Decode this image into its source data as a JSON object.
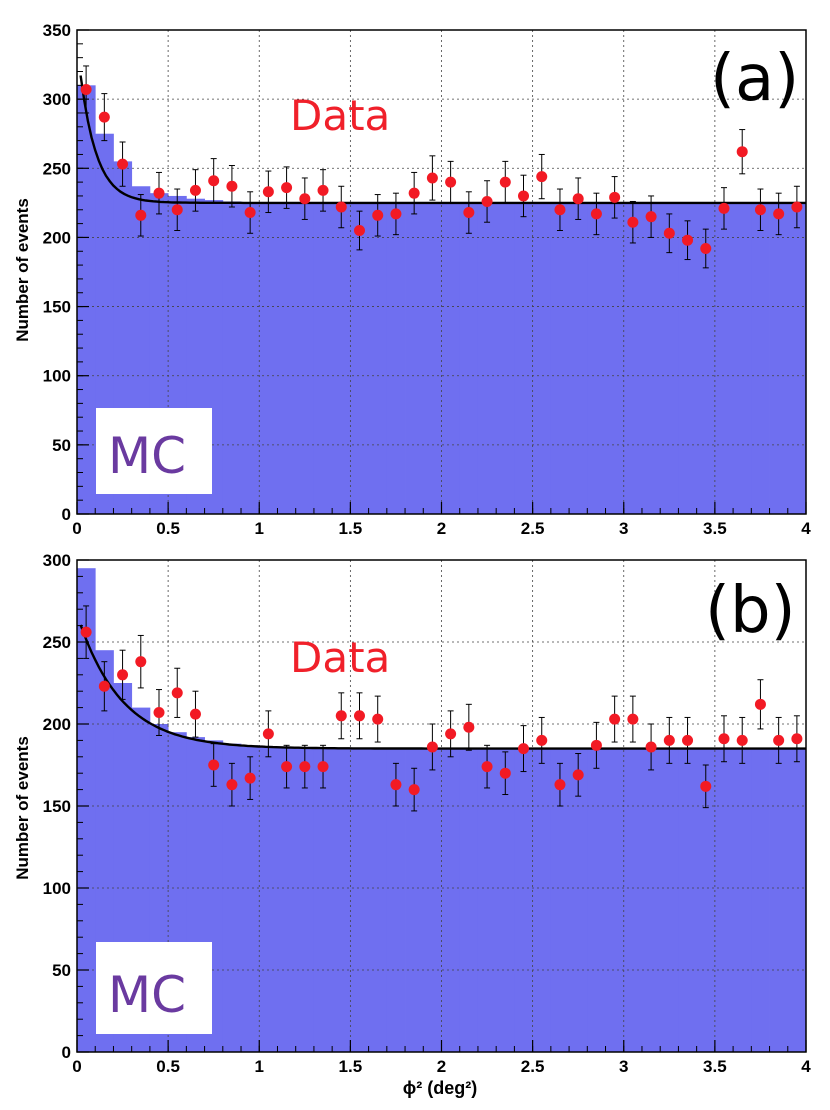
{
  "chart_data": [
    {
      "type": "bar",
      "panel_label": "(a)",
      "ylabel": "Number of events",
      "xlabel": "",
      "xlim": [
        0,
        4
      ],
      "ylim": [
        0,
        350
      ],
      "x_ticks": [
        "0",
        "0.5",
        "1",
        "1.5",
        "2",
        "2.5",
        "3",
        "3.5",
        "4"
      ],
      "y_ticks": [
        "0",
        "50",
        "100",
        "150",
        "200",
        "250",
        "300",
        "350"
      ],
      "grid": true,
      "data_text": "Data",
      "mc_text": "MC",
      "bin_width": 0.1,
      "mc_histogram": [
        310,
        275,
        255,
        237,
        232,
        230,
        228,
        227,
        226,
        225,
        225,
        225,
        225,
        225,
        225,
        225,
        225,
        225,
        225,
        225,
        225,
        225,
        225,
        225,
        225,
        225,
        225,
        225,
        225,
        225,
        225,
        225,
        225,
        225,
        225,
        225,
        225,
        225,
        225,
        225
      ],
      "data_points": {
        "x": [
          0.05,
          0.15,
          0.25,
          0.35,
          0.45,
          0.55,
          0.65,
          0.75,
          0.85,
          0.95,
          1.05,
          1.15,
          1.25,
          1.35,
          1.45,
          1.55,
          1.65,
          1.75,
          1.85,
          1.95,
          2.05,
          2.15,
          2.25,
          2.35,
          2.45,
          2.55,
          2.65,
          2.75,
          2.85,
          2.95,
          3.05,
          3.15,
          3.25,
          3.35,
          3.45,
          3.55,
          3.65,
          3.75,
          3.85,
          3.95
        ],
        "y": [
          307,
          287,
          253,
          216,
          232,
          220,
          234,
          241,
          237,
          218,
          233,
          236,
          228,
          234,
          222,
          205,
          216,
          217,
          232,
          243,
          240,
          218,
          226,
          240,
          230,
          244,
          220,
          228,
          217,
          229,
          211,
          215,
          203,
          198,
          192,
          221,
          262,
          220,
          217,
          222
        ],
        "yerr": [
          17,
          17,
          16,
          15,
          15,
          15,
          15,
          16,
          15,
          15,
          15,
          15,
          15,
          15,
          15,
          14,
          15,
          15,
          15,
          16,
          15,
          15,
          15,
          15,
          15,
          16,
          15,
          15,
          15,
          15,
          15,
          15,
          14,
          14,
          14,
          15,
          16,
          15,
          15,
          15
        ]
      },
      "fit_curve": {
        "baseline": 225,
        "amplitude": 115,
        "decay": 0.09
      }
    },
    {
      "type": "bar",
      "panel_label": "(b)",
      "ylabel": "Number of events",
      "xlabel": "ϕ² (deg²)",
      "xlim": [
        0,
        4
      ],
      "ylim": [
        0,
        300
      ],
      "x_ticks": [
        "0",
        "0.5",
        "1",
        "1.5",
        "2",
        "2.5",
        "3",
        "3.5",
        "4"
      ],
      "y_ticks": [
        "0",
        "50",
        "100",
        "150",
        "200",
        "250",
        "300"
      ],
      "grid": true,
      "data_text": "Data",
      "mc_text": "MC",
      "bin_width": 0.1,
      "mc_histogram": [
        295,
        245,
        225,
        210,
        200,
        195,
        192,
        190,
        188,
        187,
        186,
        186,
        185,
        185,
        185,
        185,
        185,
        185,
        185,
        185,
        185,
        185,
        185,
        185,
        185,
        185,
        185,
        185,
        185,
        185,
        185,
        185,
        185,
        185,
        185,
        185,
        185,
        185,
        185,
        185
      ],
      "data_points": {
        "x": [
          0.05,
          0.15,
          0.25,
          0.35,
          0.45,
          0.55,
          0.65,
          0.75,
          0.85,
          0.95,
          1.05,
          1.15,
          1.25,
          1.35,
          1.45,
          1.55,
          1.65,
          1.75,
          1.85,
          1.95,
          2.05,
          2.15,
          2.25,
          2.35,
          2.45,
          2.55,
          2.65,
          2.75,
          2.85,
          2.95,
          3.05,
          3.15,
          3.25,
          3.35,
          3.45,
          3.55,
          3.65,
          3.75,
          3.85,
          3.95
        ],
        "y": [
          256,
          223,
          230,
          238,
          207,
          219,
          206,
          175,
          163,
          167,
          194,
          174,
          174,
          174,
          205,
          205,
          203,
          163,
          160,
          186,
          194,
          198,
          174,
          170,
          185,
          190,
          163,
          169,
          187,
          203,
          203,
          186,
          190,
          190,
          162,
          191,
          190,
          212,
          190,
          191
        ],
        "yerr": [
          16,
          15,
          15,
          16,
          14,
          15,
          14,
          13,
          13,
          13,
          14,
          13,
          13,
          13,
          14,
          14,
          14,
          13,
          13,
          14,
          14,
          14,
          13,
          13,
          14,
          14,
          13,
          13,
          14,
          14,
          14,
          14,
          14,
          14,
          13,
          14,
          14,
          15,
          14,
          14
        ]
      },
      "fit_curve": {
        "baseline": 185,
        "amplitude": 82,
        "decay": 0.24
      }
    }
  ]
}
